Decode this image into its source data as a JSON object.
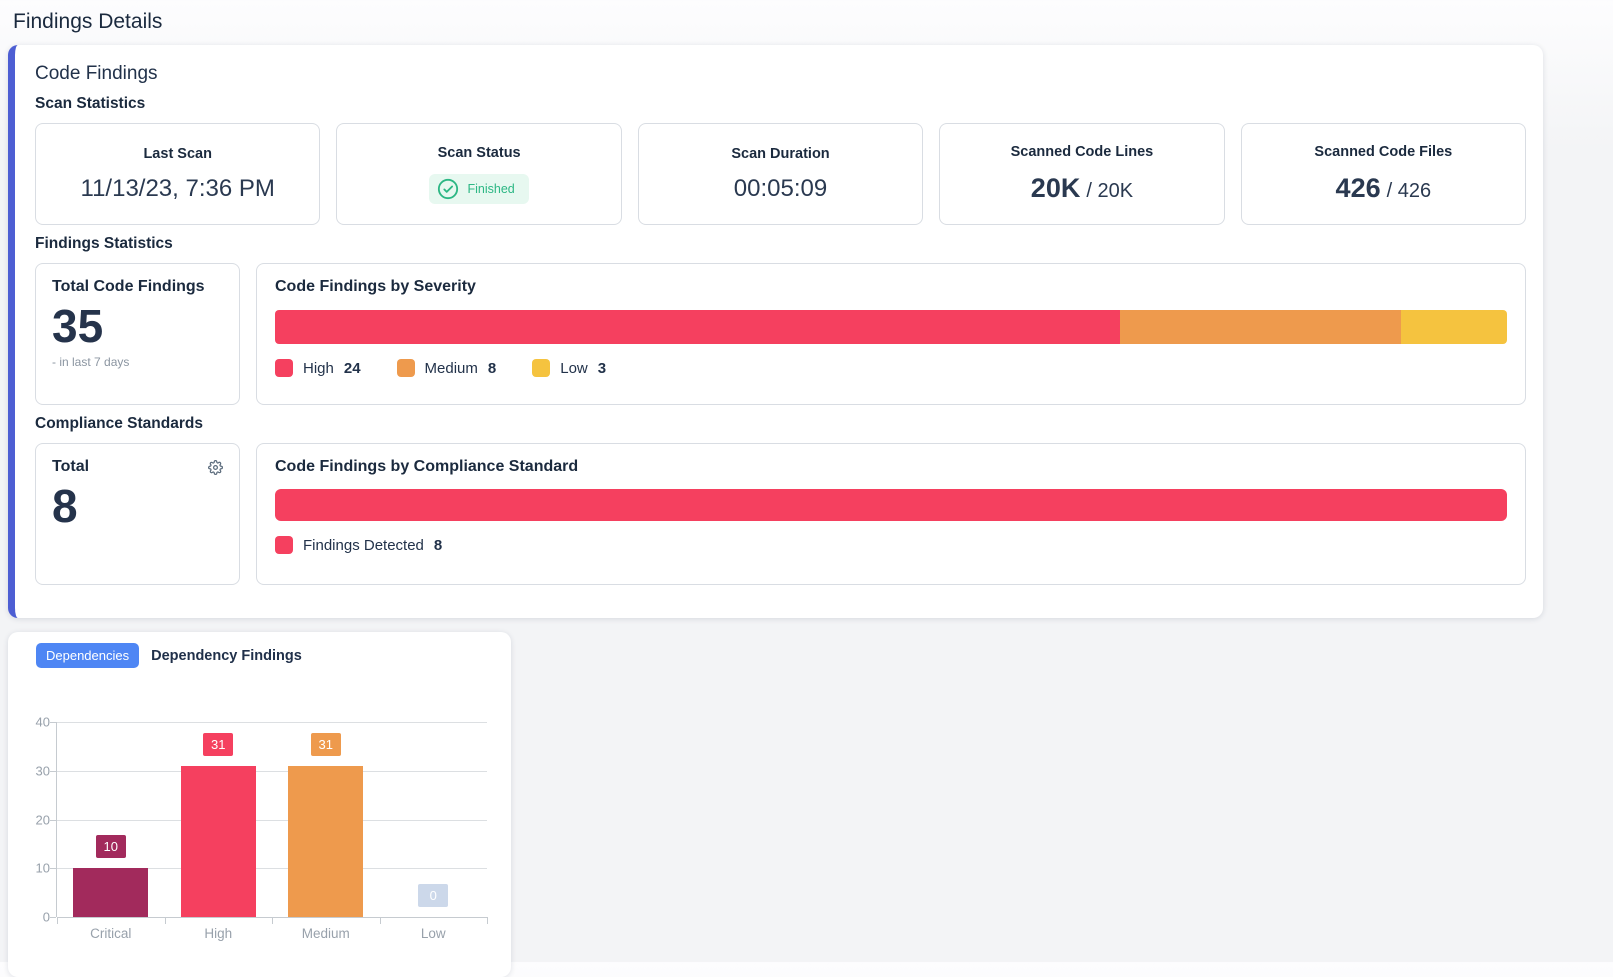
{
  "page_title": "Findings Details",
  "colors": {
    "accent_border": "#4d5ed3",
    "badge_blue": "#4e86f4",
    "success_green": "#2cb784",
    "high_red": "#f5405f",
    "medium_orange": "#ee9a4d",
    "low_yellow": "#f5c33f",
    "critical_magenta": "#a22a5c",
    "zero_lightblue": "#ccd8ea"
  },
  "code_findings": {
    "title": "Code Findings",
    "scan_statistics": {
      "heading": "Scan Statistics",
      "last_scan": {
        "label": "Last Scan",
        "value": "11/13/23, 7:36 PM"
      },
      "scan_status": {
        "label": "Scan Status",
        "value": "Finished"
      },
      "scan_duration": {
        "label": "Scan Duration",
        "value": "00:05:09"
      },
      "scanned_code_lines": {
        "label": "Scanned Code Lines",
        "value": "20K",
        "separator": "/",
        "total": "20K"
      },
      "scanned_code_files": {
        "label": "Scanned Code Files",
        "value": "426",
        "separator": "/",
        "total": "426"
      }
    },
    "findings_statistics": {
      "heading": "Findings Statistics",
      "total_card": {
        "label": "Total Code Findings",
        "value": "35",
        "subtext": "- in last 7 days"
      },
      "severity_chart_title": "Code Findings by Severity"
    },
    "compliance": {
      "heading": "Compliance Standards",
      "total_card": {
        "label": "Total",
        "value": "8"
      },
      "standard_chart_title": "Code Findings by Compliance Standard"
    }
  },
  "dependencies_panel": {
    "badge_label": "Dependencies",
    "title": "Dependency Findings"
  },
  "chart_data": [
    {
      "name": "code-findings-by-severity",
      "type": "bar",
      "variant": "stacked-horizontal",
      "title": "Code Findings by Severity",
      "total": 35,
      "series": [
        {
          "name": "High",
          "value": 24,
          "color": "#f5405f"
        },
        {
          "name": "Medium",
          "value": 8,
          "color": "#ee9a4d"
        },
        {
          "name": "Low",
          "value": 3,
          "color": "#f5c33f"
        }
      ],
      "legend_position": "bottom"
    },
    {
      "name": "code-findings-by-compliance-standard",
      "type": "bar",
      "variant": "horizontal-single",
      "title": "Code Findings by Compliance Standard",
      "series": [
        {
          "name": "Findings Detected",
          "value": 8,
          "color": "#f5405f"
        }
      ],
      "legend_position": "bottom"
    },
    {
      "name": "dependency-findings-by-severity",
      "type": "bar",
      "title": "Dependency Findings",
      "categories": [
        "Critical",
        "High",
        "Medium",
        "Low"
      ],
      "values": [
        10,
        31,
        31,
        0
      ],
      "colors": [
        "#a22a5c",
        "#f5405f",
        "#ee9a4d",
        "#ccd8ea"
      ],
      "ylim": [
        0,
        40
      ],
      "yticks": [
        0,
        10,
        20,
        30,
        40
      ],
      "grid": true,
      "value_labels": true
    }
  ]
}
